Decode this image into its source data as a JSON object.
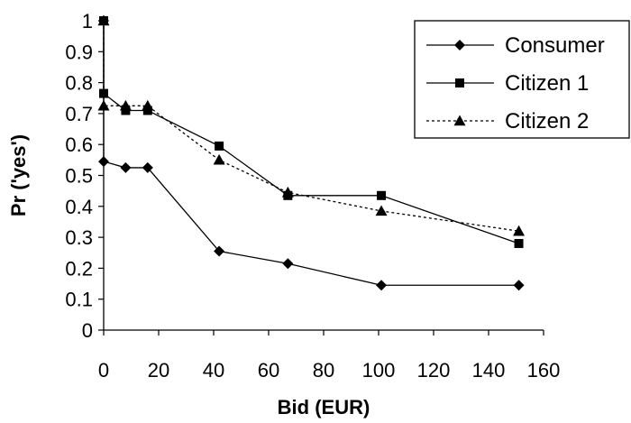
{
  "chart_data": {
    "type": "line",
    "xlabel": "Bid (EUR)",
    "ylabel": "Pr ('yes')",
    "xlim": [
      0,
      160
    ],
    "ylim": [
      0,
      1
    ],
    "x_ticks": [
      "0",
      "20",
      "40",
      "60",
      "80",
      "100",
      "120",
      "140",
      "160"
    ],
    "y_ticks": [
      "0",
      "0.1",
      "0.2",
      "0.3",
      "0.4",
      "0.5",
      "0.6",
      "0.7",
      "0.8",
      "0.9",
      "1"
    ],
    "grid": false,
    "legend_position": "top-right",
    "series": [
      {
        "name": "Consumer",
        "marker": "diamond",
        "line": "solid",
        "x": [
          0,
          0,
          8,
          16,
          42,
          67,
          101,
          151
        ],
        "y": [
          1.0,
          0.545,
          0.525,
          0.525,
          0.255,
          0.215,
          0.145,
          0.145
        ]
      },
      {
        "name": "Citizen 1",
        "marker": "square",
        "line": "solid",
        "x": [
          0,
          0,
          8,
          16,
          42,
          67,
          101,
          151
        ],
        "y": [
          1.0,
          0.765,
          0.71,
          0.71,
          0.595,
          0.435,
          0.435,
          0.28
        ]
      },
      {
        "name": "Citizen 2",
        "marker": "triangle",
        "line": "dotted",
        "x": [
          0,
          0,
          8,
          16,
          42,
          67,
          101,
          151
        ],
        "y": [
          1.0,
          0.725,
          0.725,
          0.725,
          0.55,
          0.445,
          0.385,
          0.32
        ]
      }
    ]
  }
}
